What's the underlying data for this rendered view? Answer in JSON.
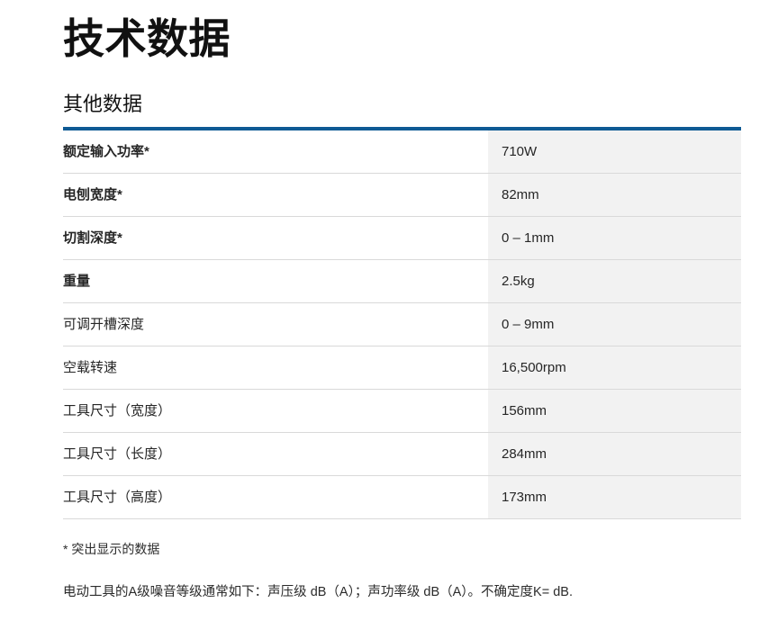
{
  "page": {
    "title": "技术数据",
    "section_title": "其他数据"
  },
  "table": {
    "rows": [
      {
        "label": "额定输入功率*",
        "value": "710W",
        "emphasis": true
      },
      {
        "label": "电刨宽度*",
        "value": "82mm",
        "emphasis": true
      },
      {
        "label": "切割深度*",
        "value": "0 – 1mm",
        "emphasis": true
      },
      {
        "label": "重量",
        "value": "2.5kg",
        "emphasis": true
      },
      {
        "label": "可调开槽深度",
        "value": "0 – 9mm",
        "emphasis": false
      },
      {
        "label": "空载转速",
        "value": "16,500rpm",
        "emphasis": false
      },
      {
        "label": "工具尺寸（宽度）",
        "value": "156mm",
        "emphasis": false
      },
      {
        "label": "工具尺寸（长度）",
        "value": "284mm",
        "emphasis": false
      },
      {
        "label": "工具尺寸（高度）",
        "value": "173mm",
        "emphasis": false
      }
    ]
  },
  "footnotes": {
    "highlight_note": "* 突出显示的数据",
    "noise_note": "电动工具的A级噪音等级通常如下：声压级 dB（A）；声功率级 dB（A）。不确定度K= dB."
  },
  "colors": {
    "accent_blue": "#0e5a94",
    "value_column_bg": "#f2f2f2",
    "divider": "#d9d9d9"
  }
}
